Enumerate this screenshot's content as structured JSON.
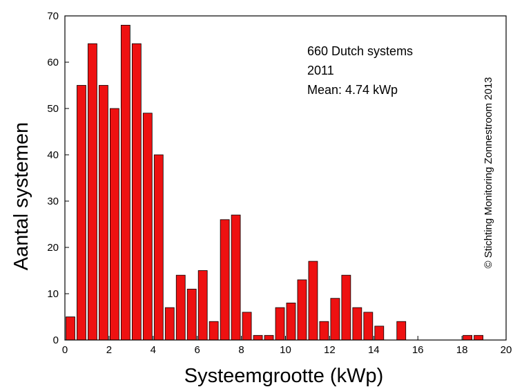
{
  "chart_data": {
    "type": "bar",
    "xlabel": "Systeemgrootte (kWp)",
    "ylabel": "Aantal systemen",
    "xlim": [
      0,
      20
    ],
    "ylim": [
      0,
      70
    ],
    "xticks": [
      0,
      2,
      4,
      6,
      8,
      10,
      12,
      14,
      16,
      18,
      20
    ],
    "yticks": [
      0,
      10,
      20,
      30,
      40,
      50,
      60,
      70
    ],
    "bin_width": 0.5,
    "bins": [
      {
        "x": 0.25,
        "value": 5
      },
      {
        "x": 0.75,
        "value": 55
      },
      {
        "x": 1.25,
        "value": 64
      },
      {
        "x": 1.75,
        "value": 55
      },
      {
        "x": 2.25,
        "value": 50
      },
      {
        "x": 2.75,
        "value": 68
      },
      {
        "x": 3.25,
        "value": 64
      },
      {
        "x": 3.75,
        "value": 49
      },
      {
        "x": 4.25,
        "value": 40
      },
      {
        "x": 4.75,
        "value": 7
      },
      {
        "x": 5.25,
        "value": 14
      },
      {
        "x": 5.75,
        "value": 11
      },
      {
        "x": 6.25,
        "value": 15
      },
      {
        "x": 6.75,
        "value": 4
      },
      {
        "x": 7.25,
        "value": 26
      },
      {
        "x": 7.75,
        "value": 27
      },
      {
        "x": 8.25,
        "value": 6
      },
      {
        "x": 8.75,
        "value": 1
      },
      {
        "x": 9.25,
        "value": 1
      },
      {
        "x": 9.75,
        "value": 7
      },
      {
        "x": 10.25,
        "value": 8
      },
      {
        "x": 10.75,
        "value": 13
      },
      {
        "x": 11.25,
        "value": 17
      },
      {
        "x": 11.75,
        "value": 4
      },
      {
        "x": 12.25,
        "value": 9
      },
      {
        "x": 12.75,
        "value": 14
      },
      {
        "x": 13.25,
        "value": 7
      },
      {
        "x": 13.75,
        "value": 6
      },
      {
        "x": 14.25,
        "value": 3
      },
      {
        "x": 14.75,
        "value": 0
      },
      {
        "x": 15.25,
        "value": 4
      },
      {
        "x": 18.25,
        "value": 1
      },
      {
        "x": 18.75,
        "value": 1
      }
    ],
    "annotations": [
      "660 Dutch systems",
      "2011",
      "Mean: 4.74 kWp"
    ],
    "copyright": "© Stichting Monitoring Zonnestroom 2013",
    "bar_color": "#ee1111",
    "grid": false
  }
}
